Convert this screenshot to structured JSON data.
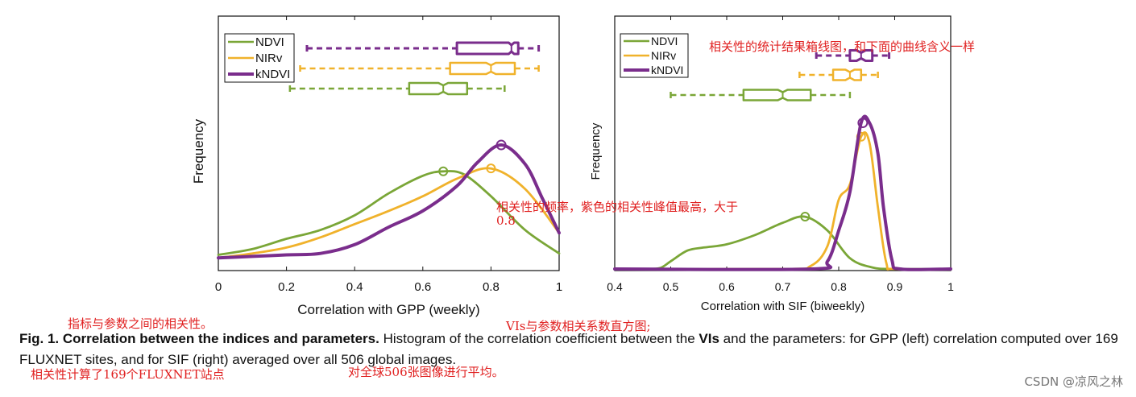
{
  "chart_data": [
    {
      "type": "line",
      "xlabel": "Correlation with GPP (weekly)",
      "ylabel": "Frequency",
      "xlim": [
        0,
        1
      ],
      "xticks": [
        "0",
        "0.2",
        "0.4",
        "0.6",
        "0.8",
        "1"
      ],
      "legend_position": "top-left",
      "legend": [
        "NDVI",
        "NIRv",
        "kNDVI"
      ],
      "series": [
        {
          "name": "NDVI",
          "color": "#7aa637",
          "x": [
            0,
            0.1,
            0.2,
            0.3,
            0.4,
            0.5,
            0.6,
            0.66,
            0.72,
            0.8,
            0.9,
            1.0
          ],
          "y": [
            0.03,
            0.07,
            0.14,
            0.2,
            0.3,
            0.45,
            0.57,
            0.6,
            0.58,
            0.43,
            0.2,
            0.04
          ],
          "peak": [
            0.66,
            0.6
          ]
        },
        {
          "name": "NIRv",
          "color": "#f0b22b",
          "x": [
            0,
            0.1,
            0.2,
            0.3,
            0.4,
            0.5,
            0.6,
            0.7,
            0.8,
            0.9,
            1.0
          ],
          "y": [
            0.01,
            0.04,
            0.08,
            0.15,
            0.24,
            0.33,
            0.43,
            0.55,
            0.62,
            0.48,
            0.18
          ],
          "peak": [
            0.8,
            0.62
          ]
        },
        {
          "name": "kNDVI",
          "color": "#7a2d8c",
          "x": [
            0,
            0.1,
            0.2,
            0.3,
            0.4,
            0.5,
            0.6,
            0.7,
            0.76,
            0.83,
            0.9,
            0.95,
            1.0
          ],
          "y": [
            0.01,
            0.02,
            0.03,
            0.04,
            0.1,
            0.22,
            0.33,
            0.5,
            0.66,
            0.78,
            0.65,
            0.42,
            0.18
          ],
          "peak": [
            0.83,
            0.78
          ]
        }
      ],
      "boxplots": [
        {
          "name": "kNDVI",
          "color": "#7a2d8c",
          "whisker_low": 0.26,
          "q1": 0.7,
          "median": 0.86,
          "q3": 0.88,
          "whisker_high": 0.94
        },
        {
          "name": "NIRv",
          "color": "#f0b22b",
          "whisker_low": 0.24,
          "q1": 0.68,
          "median": 0.8,
          "q3": 0.87,
          "whisker_high": 0.94
        },
        {
          "name": "NDVI",
          "color": "#7aa637",
          "whisker_low": 0.21,
          "q1": 0.56,
          "median": 0.66,
          "q3": 0.73,
          "whisker_high": 0.84
        }
      ]
    },
    {
      "type": "line",
      "xlabel": "Correlation with SIF (biweekly)",
      "ylabel": "Frequency",
      "xlim": [
        0.4,
        1
      ],
      "xticks": [
        "0.4",
        "0.5",
        "0.6",
        "0.7",
        "0.8",
        "0.9",
        "1"
      ],
      "legend_position": "top-left",
      "legend": [
        "NDVI",
        "NIRv",
        "kNDVI"
      ],
      "series": [
        {
          "name": "NDVI",
          "color": "#7aa637",
          "x": [
            0.4,
            0.45,
            0.48,
            0.5,
            0.53,
            0.56,
            0.6,
            0.65,
            0.7,
            0.74,
            0.78,
            0.82,
            0.86,
            0.9,
            1.0
          ],
          "y": [
            0,
            0,
            0.005,
            0.05,
            0.12,
            0.14,
            0.16,
            0.22,
            0.3,
            0.34,
            0.25,
            0.07,
            0.01,
            0,
            0
          ],
          "peak": [
            0.74,
            0.34
          ]
        },
        {
          "name": "NIRv",
          "color": "#f0b22b",
          "x": [
            0.4,
            0.7,
            0.75,
            0.78,
            0.8,
            0.82,
            0.84,
            0.855,
            0.87,
            0.885,
            0.9,
            1.0
          ],
          "y": [
            0,
            0,
            0.02,
            0.15,
            0.45,
            0.55,
            0.86,
            0.82,
            0.4,
            0.04,
            0,
            0
          ],
          "peak": [
            0.84,
            0.86
          ]
        },
        {
          "name": "kNDVI",
          "color": "#7a2d8c",
          "x": [
            0.4,
            0.75,
            0.78,
            0.8,
            0.82,
            0.84,
            0.855,
            0.87,
            0.88,
            0.895,
            0.91,
            1.0
          ],
          "y": [
            0,
            0,
            0.05,
            0.25,
            0.5,
            0.95,
            0.95,
            0.75,
            0.4,
            0.06,
            0,
            0
          ],
          "peak": [
            0.843,
            0.95
          ]
        }
      ],
      "boxplots": [
        {
          "name": "kNDVI",
          "color": "#7a2d8c",
          "whisker_low": 0.76,
          "q1": 0.82,
          "median": 0.84,
          "q3": 0.86,
          "whisker_high": 0.89
        },
        {
          "name": "NIRv",
          "color": "#f0b22b",
          "whisker_low": 0.73,
          "q1": 0.79,
          "median": 0.82,
          "q3": 0.84,
          "whisker_high": 0.87
        },
        {
          "name": "NDVI",
          "color": "#7aa637",
          "whisker_low": 0.5,
          "q1": 0.63,
          "median": 0.7,
          "q3": 0.75,
          "whisker_high": 0.82
        }
      ]
    }
  ],
  "caption": {
    "fig_label": "Fig. 1. Correlation between the indices and parameters.",
    "text_1": " Histogram of the correlation coefficient between the ",
    "bold_word": "VIs",
    "text_2": " and the parameters: for GPP (left) correlation computed over 169 FLUXNET sites, and for SIF (right) averaged over all 506 global images."
  },
  "annotations": {
    "boxplot_note": "相关性的统计结果箱线图，和下面的曲线含义一样",
    "frequency_note_1": "相关性的频率，紫色的相关性峰值最高，大于",
    "frequency_note_2": "0.8",
    "indices_note": "指标与参数之间的相关性。",
    "vis_note": "VIs与参数相关系数直方图;",
    "sites_note": "相关性计算了169个FLUXNET站点",
    "global_note": "对全球506张图像进行平均。"
  },
  "watermark": "CSDN @凉风之林"
}
